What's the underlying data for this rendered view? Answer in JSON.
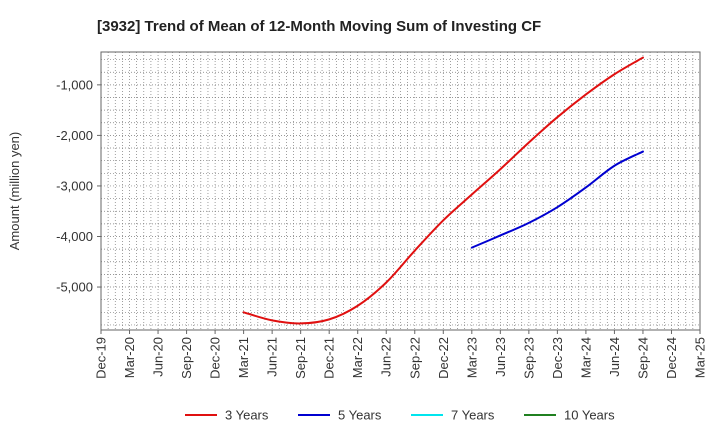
{
  "chart_data": {
    "type": "line",
    "title": "[3932]  Trend of Mean of 12-Month Moving Sum of Investing CF",
    "ylabel": "Amount (million yen)",
    "xlabel": "",
    "x": [
      "Dec-19",
      "Mar-20",
      "Jun-20",
      "Sep-20",
      "Dec-20",
      "Mar-21",
      "Jun-21",
      "Sep-21",
      "Dec-21",
      "Mar-22",
      "Jun-22",
      "Sep-22",
      "Dec-22",
      "Mar-23",
      "Jun-23",
      "Sep-23",
      "Dec-23",
      "Mar-24",
      "Jun-24",
      "Sep-24",
      "Dec-24",
      "Mar-25"
    ],
    "ylim": [
      -5850,
      -350
    ],
    "yticks": [
      -5000,
      -4000,
      -3000,
      -2000,
      -1000
    ],
    "ytick_labels": [
      "-5,000",
      "-4,000",
      "-3,000",
      "-2,000",
      "-1,000"
    ],
    "grid": true,
    "legend_position": "bottom",
    "series": [
      {
        "name": "3 Years",
        "color": "#e01010",
        "values": [
          null,
          null,
          null,
          null,
          null,
          -5500,
          -5660,
          -5720,
          -5640,
          -5370,
          -4910,
          -4280,
          -3680,
          -3170,
          -2670,
          -2140,
          -1640,
          -1190,
          -790,
          -460,
          null,
          null
        ]
      },
      {
        "name": "5 Years",
        "color": "#0000d0",
        "values": [
          null,
          null,
          null,
          null,
          null,
          null,
          null,
          null,
          null,
          null,
          null,
          null,
          null,
          -4220,
          -3980,
          -3730,
          -3420,
          -3030,
          -2600,
          -2320,
          null,
          null
        ]
      },
      {
        "name": "7 Years",
        "color": "#00e5ee",
        "values": [
          null,
          null,
          null,
          null,
          null,
          null,
          null,
          null,
          null,
          null,
          null,
          null,
          null,
          null,
          null,
          null,
          null,
          null,
          null,
          null,
          null,
          null
        ]
      },
      {
        "name": "10 Years",
        "color": "#208020",
        "values": [
          null,
          null,
          null,
          null,
          null,
          null,
          null,
          null,
          null,
          null,
          null,
          null,
          null,
          null,
          null,
          null,
          null,
          null,
          null,
          null,
          null,
          null
        ]
      }
    ]
  }
}
